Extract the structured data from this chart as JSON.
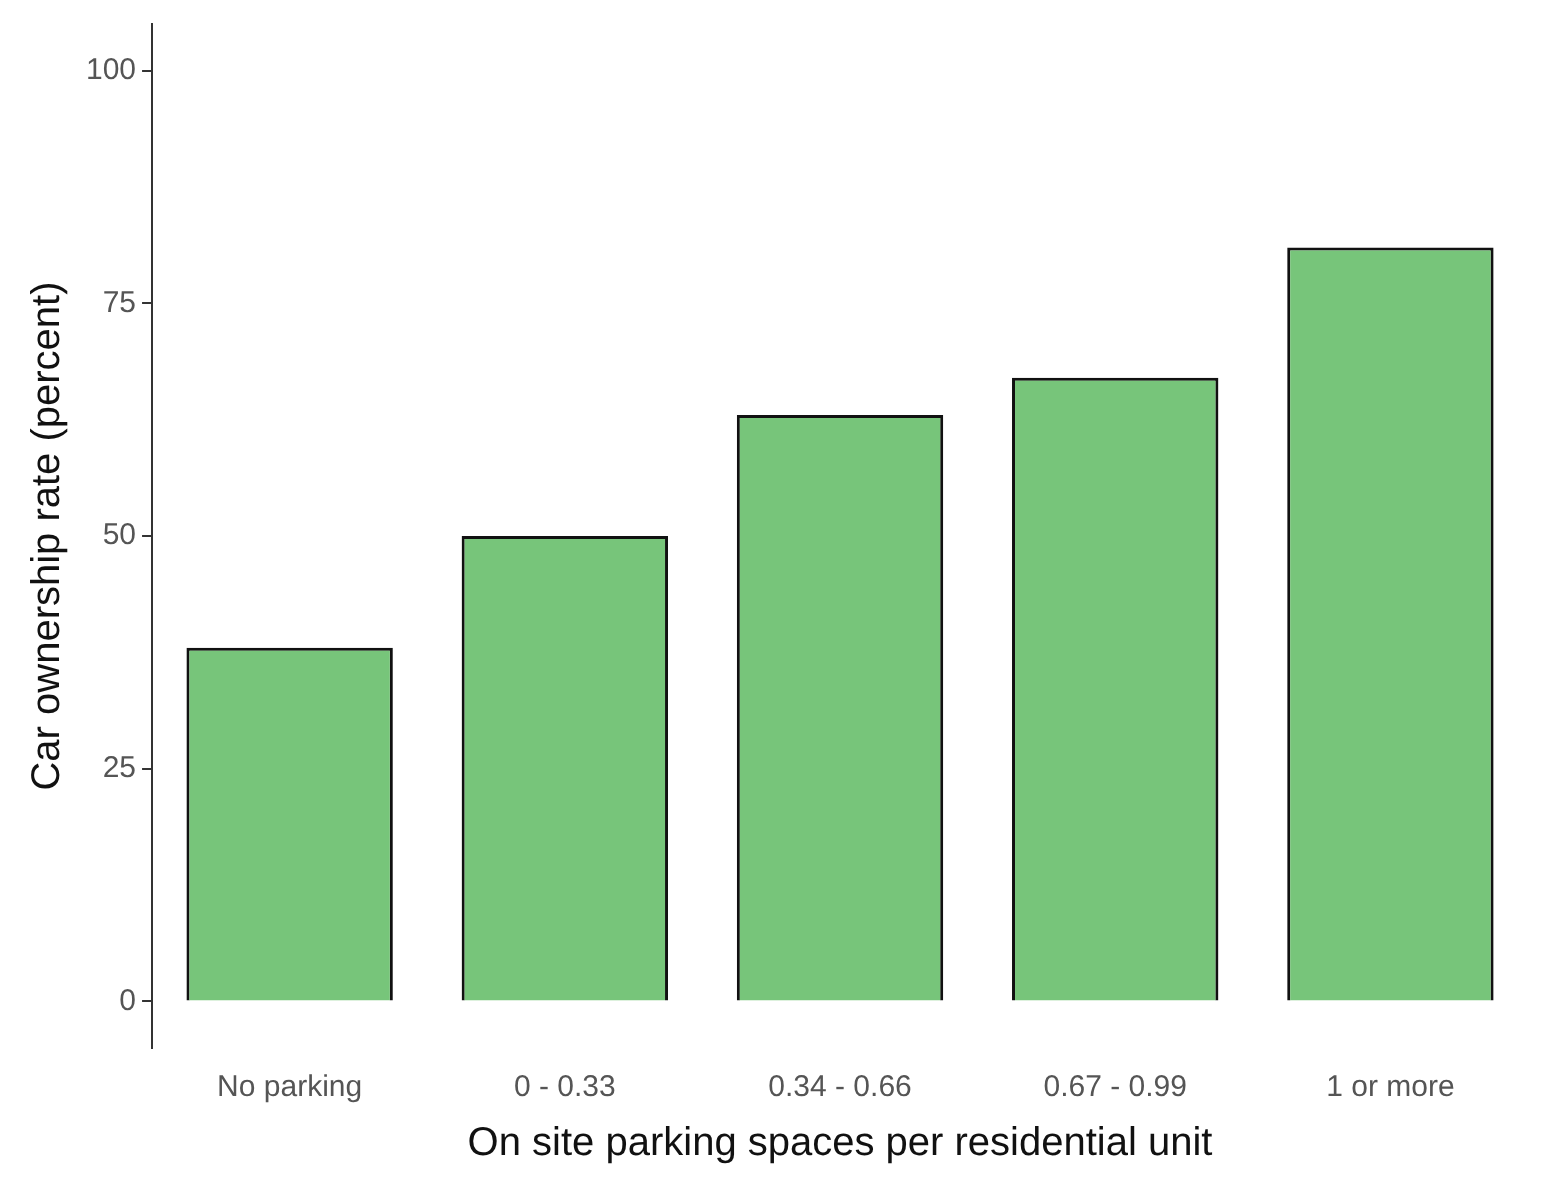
{
  "chart_data": {
    "type": "bar",
    "xlabel": "On site parking spaces per residential unit",
    "ylabel": "Car ownership rate (percent)",
    "categories": [
      "No parking",
      "0 - 0.33",
      "0.34 - 0.66",
      "0.67 - 0.99",
      "1 or more"
    ],
    "values": [
      38,
      50,
      63,
      67,
      81
    ],
    "color": "#77c57a",
    "ylim": [
      -5,
      105
    ],
    "yticks": [
      0,
      25,
      50,
      75,
      100
    ],
    "grid": false,
    "legend": false
  }
}
